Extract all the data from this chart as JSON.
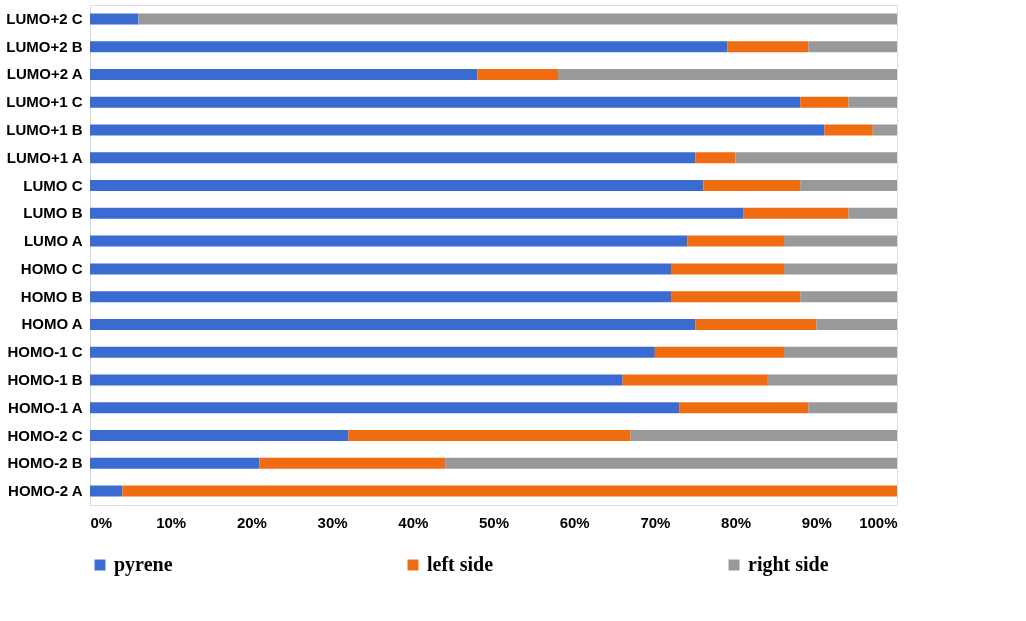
{
  "chart_data": {
    "type": "bar",
    "orientation": "horizontal",
    "stacked": true,
    "legend": "bottom",
    "grid": false,
    "categories": [
      "LUMO+2 C",
      "LUMO+2 B",
      "LUMO+2 A",
      "LUMO+1 C",
      "LUMO+1 B",
      "LUMO+1 A",
      "LUMO C",
      "LUMO B",
      "LUMO A",
      "HOMO C",
      "HOMO B",
      "HOMO A",
      "HOMO-1 C",
      "HOMO-1 B",
      "HOMO-1 A",
      "HOMO-2 C",
      "HOMO-2 B",
      "HOMO-2 A"
    ],
    "series": [
      {
        "name": "pyrene",
        "color": "#3a6bd0",
        "values": [
          6,
          79,
          48,
          88,
          91,
          75,
          76,
          81,
          74,
          72,
          72,
          75,
          70,
          66,
          73,
          32,
          21,
          4
        ]
      },
      {
        "name": "left side",
        "color": "#ef6c12",
        "values": [
          0,
          10,
          10,
          6,
          6,
          5,
          12,
          13,
          12,
          14,
          16,
          15,
          16,
          18,
          16,
          35,
          23,
          96
        ]
      },
      {
        "name": "right side",
        "color": "#999999",
        "values": [
          94,
          11,
          42,
          6,
          3,
          20,
          12,
          6,
          14,
          14,
          12,
          10,
          14,
          16,
          11,
          33,
          56,
          0
        ]
      }
    ],
    "xlim": [
      0,
      100
    ],
    "xticks": [
      {
        "value": 0,
        "label": "0%"
      },
      {
        "value": 10,
        "label": "10%"
      },
      {
        "value": 20,
        "label": "20%"
      },
      {
        "value": 30,
        "label": "30%"
      },
      {
        "value": 40,
        "label": "40%"
      },
      {
        "value": 50,
        "label": "50%"
      },
      {
        "value": 60,
        "label": "60%"
      },
      {
        "value": 70,
        "label": "70%"
      },
      {
        "value": 80,
        "label": "80%"
      },
      {
        "value": 90,
        "label": "90%"
      },
      {
        "value": 100,
        "label": "100%"
      }
    ]
  }
}
